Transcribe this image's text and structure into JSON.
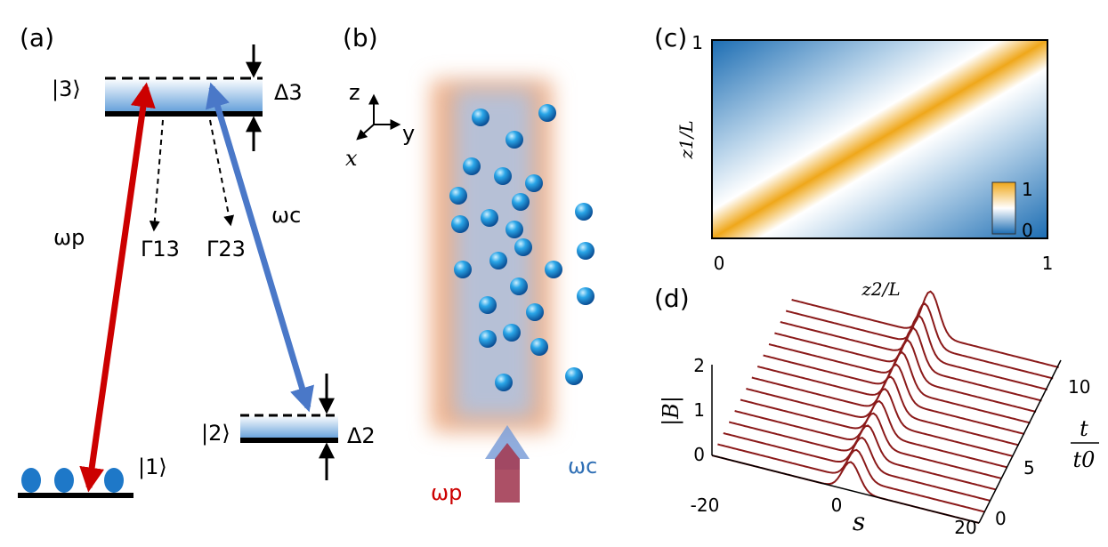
{
  "panel_a": {
    "label": "(a)",
    "level3": "|3⟩",
    "level2": "|2⟩",
    "level1": "|1⟩",
    "delta3": "Δ3",
    "delta2": "Δ2",
    "omega_p": "ωp",
    "omega_c": "ωc",
    "gamma13": "Γ13",
    "gamma23": "Γ23"
  },
  "panel_b": {
    "label": "(b)",
    "axis_z": "z",
    "axis_y": "y",
    "axis_x": "x",
    "omega_p": "ωp",
    "omega_c": "ωc"
  },
  "panel_c": {
    "label": "(c)",
    "ylabel": "z1/L",
    "xlabel": "z2/L",
    "ytick_top": "1",
    "xtick_left": "0",
    "xtick_right": "1",
    "colorbar_top": "1",
    "colorbar_bottom": "0"
  },
  "panel_d": {
    "label": "(d)",
    "ylabel": "|B|",
    "yticks": [
      "2",
      "1",
      "0"
    ],
    "xticks": [
      "-20",
      "0",
      "20"
    ],
    "xlabel": "s",
    "tticks": [
      "0",
      "5",
      "10"
    ],
    "tlabel_num": "t",
    "tlabel_den": "t0"
  }
}
